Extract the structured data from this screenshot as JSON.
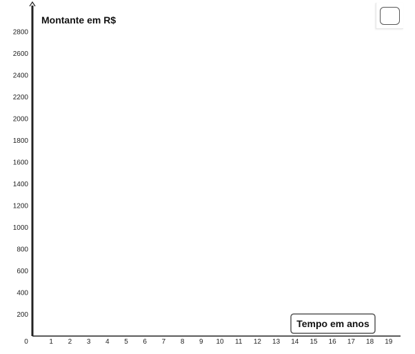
{
  "graph": {
    "y_axis_title": "Montante em R$",
    "x_axis_title": "Tempo em anos",
    "x_ticks": [
      "1",
      "2",
      "3",
      "4",
      "5",
      "6",
      "7",
      "8",
      "9",
      "10",
      "11",
      "12",
      "13",
      "14",
      "15",
      "16",
      "17",
      "18",
      "19"
    ],
    "y_ticks": [
      "200",
      "400",
      "600",
      "800",
      "1000",
      "1200",
      "1400",
      "1600",
      "1800",
      "2000",
      "2200",
      "2400",
      "2600",
      "2800"
    ],
    "origin_label": "0",
    "axis_color": "#222222",
    "label_box_border_color": "#555555"
  },
  "toolbar": {
    "graphics_view_button_icon": "square-icon"
  }
}
